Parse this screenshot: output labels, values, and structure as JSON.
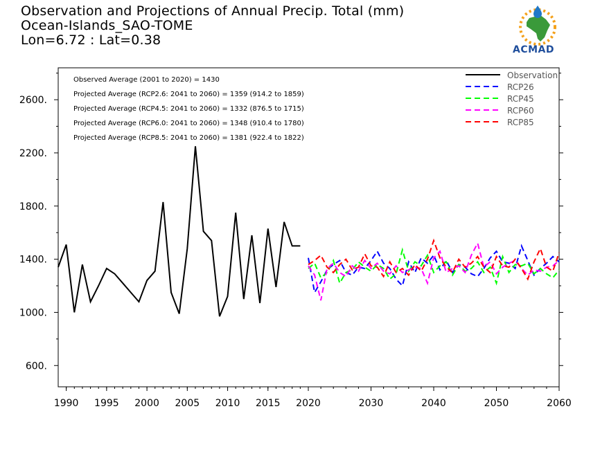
{
  "header": {
    "title_line1": "Observation and Projections of Annual Precip. Total (mm)",
    "title_line2": "Ocean-Islands_SAO-TOME",
    "title_line3": "Lon=6.72 : Lat=0.38"
  },
  "logo": {
    "text": "ACMAD"
  },
  "colors": {
    "observation": "#000000",
    "rcp26": "#0000ff",
    "rcp45": "#00ff00",
    "rcp60": "#ff00ff",
    "rcp85": "#ff0000"
  },
  "chart_data": {
    "type": "line",
    "title": "Observation and Projections of Annual Precip. Total (mm)",
    "xlim": [
      1989,
      2060
    ],
    "ylim": [
      440,
      2840
    ],
    "x_ticks": [
      1990,
      1995,
      2000,
      2005,
      2010,
      2015,
      2020,
      2030,
      2040,
      2050,
      2060
    ],
    "y_ticks": [
      600,
      1000,
      1400,
      1800,
      2200,
      2600
    ],
    "y_tick_labels": [
      "600.",
      "1000.",
      "1400.",
      "1800.",
      "2200.",
      "2600."
    ],
    "grid": false,
    "legend_position": "top-right",
    "annotations": [
      "Observed Average (2001 to 2020) = 1430",
      "Projected Average (RCP2.6: 2041 to 2060) = 1359 (914.2 to 1859)",
      "Projected Average (RCP4.5: 2041 to 2060) = 1332 (876.5 to 1715)",
      "Projected Average (RCP6.0: 2041 to 2060) = 1348 (910.4 to 1780)",
      "Projected Average (RCP8.5: 2041 to 2060) = 1381 (922.4 to 1822)"
    ],
    "series": [
      {
        "name": "Observation",
        "style": "solid",
        "color": "#000000",
        "x": [
          1989,
          1990,
          1991,
          1992,
          1993,
          1994,
          1995,
          1996,
          1997,
          1998,
          1999,
          2000,
          2001,
          2002,
          2003,
          2004,
          2005,
          2006,
          2007,
          2008,
          2009,
          2010,
          2011,
          2012,
          2013,
          2014,
          2015,
          2016,
          2017,
          2018,
          2019
        ],
        "values": [
          1340,
          1510,
          1000,
          1360,
          1080,
          1200,
          1330,
          1290,
          1220,
          1150,
          1080,
          1240,
          1310,
          1830,
          1150,
          990,
          1480,
          2250,
          1610,
          1540,
          970,
          1120,
          1750,
          1100,
          1580,
          1070,
          1630,
          1190,
          1680,
          1500,
          1500
        ]
      },
      {
        "name": "RCP26",
        "style": "dashed",
        "color": "#0000ff",
        "x": [
          2020,
          2021,
          2022,
          2023,
          2024,
          2025,
          2026,
          2027,
          2028,
          2029,
          2030,
          2031,
          2032,
          2033,
          2034,
          2035,
          2036,
          2037,
          2038,
          2039,
          2040,
          2041,
          2042,
          2043,
          2044,
          2045,
          2046,
          2047,
          2048,
          2049,
          2050,
          2051,
          2052,
          2053,
          2054,
          2055,
          2056,
          2057,
          2058,
          2059,
          2060
        ],
        "values": [
          1410,
          1150,
          1230,
          1320,
          1360,
          1390,
          1300,
          1280,
          1340,
          1330,
          1390,
          1460,
          1370,
          1330,
          1250,
          1200,
          1380,
          1300,
          1410,
          1370,
          1430,
          1320,
          1390,
          1300,
          1360,
          1340,
          1290,
          1270,
          1330,
          1410,
          1460,
          1380,
          1370,
          1330,
          1500,
          1390,
          1280,
          1330,
          1370,
          1420,
          1380
        ]
      },
      {
        "name": "RCP45",
        "style": "dashed",
        "color": "#00ff00",
        "x": [
          2020,
          2021,
          2022,
          2023,
          2024,
          2025,
          2026,
          2027,
          2028,
          2029,
          2030,
          2031,
          2032,
          2033,
          2034,
          2035,
          2036,
          2037,
          2038,
          2039,
          2040,
          2041,
          2042,
          2043,
          2044,
          2045,
          2046,
          2047,
          2048,
          2049,
          2050,
          2051,
          2052,
          2053,
          2054,
          2055,
          2056,
          2057,
          2058,
          2059,
          2060
        ],
        "values": [
          1330,
          1370,
          1260,
          1300,
          1390,
          1220,
          1300,
          1320,
          1380,
          1340,
          1310,
          1360,
          1330,
          1250,
          1290,
          1470,
          1310,
          1380,
          1350,
          1430,
          1300,
          1350,
          1380,
          1280,
          1360,
          1310,
          1330,
          1380,
          1300,
          1340,
          1220,
          1420,
          1300,
          1360,
          1350,
          1370,
          1290,
          1330,
          1290,
          1260,
          1320
        ]
      },
      {
        "name": "RCP60",
        "style": "dashed",
        "color": "#ff00ff",
        "x": [
          2020,
          2021,
          2022,
          2023,
          2024,
          2025,
          2026,
          2027,
          2028,
          2029,
          2030,
          2031,
          2032,
          2033,
          2034,
          2035,
          2036,
          2037,
          2038,
          2039,
          2040,
          2041,
          2042,
          2043,
          2044,
          2045,
          2046,
          2047,
          2048,
          2049,
          2050,
          2051,
          2052,
          2053,
          2054,
          2055,
          2056,
          2057,
          2058,
          2059,
          2060
        ],
        "values": [
          1350,
          1280,
          1090,
          1330,
          1370,
          1300,
          1270,
          1350,
          1310,
          1390,
          1330,
          1370,
          1310,
          1290,
          1350,
          1300,
          1320,
          1340,
          1330,
          1220,
          1410,
          1460,
          1300,
          1330,
          1350,
          1300,
          1430,
          1520,
          1340,
          1380,
          1290,
          1340,
          1370,
          1390,
          1330,
          1280,
          1320,
          1310,
          1340,
          1350,
          1390
        ]
      },
      {
        "name": "RCP85",
        "style": "dashed",
        "color": "#ff0000",
        "x": [
          2020,
          2021,
          2022,
          2023,
          2024,
          2025,
          2026,
          2027,
          2028,
          2029,
          2030,
          2031,
          2032,
          2033,
          2034,
          2035,
          2036,
          2037,
          2038,
          2039,
          2040,
          2041,
          2042,
          2043,
          2044,
          2045,
          2046,
          2047,
          2048,
          2049,
          2050,
          2051,
          2052,
          2053,
          2054,
          2055,
          2056,
          2057,
          2058,
          2059,
          2060
        ],
        "values": [
          1360,
          1390,
          1430,
          1340,
          1300,
          1360,
          1400,
          1320,
          1340,
          1440,
          1350,
          1340,
          1270,
          1380,
          1300,
          1330,
          1280,
          1360,
          1310,
          1400,
          1540,
          1410,
          1340,
          1300,
          1400,
          1340,
          1370,
          1420,
          1340,
          1300,
          1420,
          1350,
          1340,
          1400,
          1330,
          1250,
          1380,
          1480,
          1340,
          1310,
          1450
        ]
      }
    ]
  }
}
